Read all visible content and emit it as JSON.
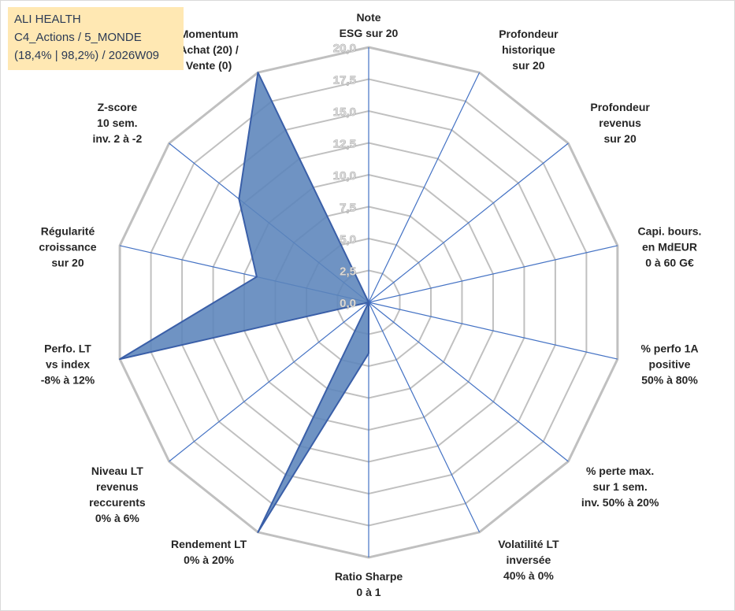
{
  "info": {
    "line1": "ALI HEALTH",
    "line2": "C4_Actions / 5_MONDE",
    "line3": "(18,4% | 98,2%) / 2026W09"
  },
  "colors": {
    "fill": "#5b84bb",
    "stroke": "#3a5fa8",
    "grid": "#c0c0c0",
    "spoke": "#4472c4"
  },
  "chart_data": {
    "type": "radar",
    "title": "",
    "rmin": 0,
    "rmax": 20,
    "ticks": [
      "0,0",
      "2,5",
      "5,0",
      "7,5",
      "10,0",
      "12,5",
      "15,0",
      "17,5",
      "20,0"
    ],
    "axes": [
      [
        "Note",
        "ESG sur 20"
      ],
      [
        "Profondeur",
        "historique",
        "sur 20"
      ],
      [
        "Profondeur",
        "revenus",
        "sur 20"
      ],
      [
        "Capi. bours.",
        "en MdEUR",
        "0 à 60 G€"
      ],
      [
        "% perfo 1A",
        "positive",
        "50% à 80%"
      ],
      [
        "% perte max.",
        "sur 1 sem.",
        "inv. 50% à 20%"
      ],
      [
        "Volatilité LT",
        "inversée",
        "40% à 0%"
      ],
      [
        "Ratio Sharpe",
        "0 à 1"
      ],
      [
        "Rendement LT",
        "0% à 20%"
      ],
      [
        "Niveau LT",
        "revenus",
        "reccurents",
        "0% à 6%"
      ],
      [
        "Perfo. LT",
        "vs index",
        "-8% à 12%"
      ],
      [
        "Régularité",
        "croissance",
        "sur 20"
      ],
      [
        "Z-score",
        "10 sem.",
        "inv. 2 à -2"
      ],
      [
        "Momentum",
        "Achat (20) /",
        "Vente (0)"
      ]
    ],
    "series": [
      {
        "values": [
          0,
          0,
          0,
          0,
          0,
          0,
          0,
          4.0,
          20.0,
          0,
          20.0,
          9.0,
          13.0,
          20.0
        ]
      }
    ]
  }
}
